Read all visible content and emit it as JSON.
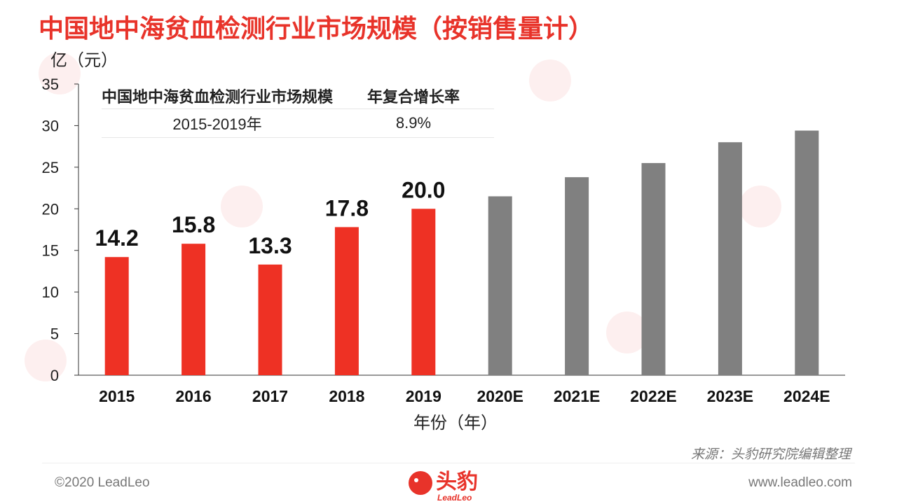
{
  "title": "中国地中海贫血检测行业市场规模（按销售量计）",
  "y_unit": "亿（元）",
  "x_title": "年份（年）",
  "cagr_table": {
    "header_left": "中国地中海贫血检测行业市场规模",
    "header_right": "年复合增长率",
    "period": "2015-2019年",
    "rate": "8.9%"
  },
  "chart_data": {
    "type": "bar",
    "categories": [
      "2015",
      "2016",
      "2017",
      "2018",
      "2019",
      "2020E",
      "2021E",
      "2022E",
      "2023E",
      "2024E"
    ],
    "values": [
      14.2,
      15.8,
      13.3,
      17.8,
      20.0,
      21.5,
      23.8,
      25.5,
      28.0,
      29.4
    ],
    "data_labels": [
      "14.2",
      "15.8",
      "13.3",
      "17.8",
      "20.0",
      null,
      null,
      null,
      null,
      null
    ],
    "ylim": [
      0,
      35
    ],
    "yticks": [
      0,
      5,
      10,
      15,
      20,
      25,
      30,
      35
    ],
    "colors": {
      "actual": "#ee3124",
      "forecast": "#808080"
    },
    "actual_count": 5
  },
  "footer": {
    "source": "来源：头豹研究院编辑整理",
    "copyright": "©2020 LeadLeo",
    "website": "www.leadleo.com",
    "logo_text": "头豹",
    "logo_subtext": "LeadLeo"
  },
  "icons": {
    "logo": "leopard-logo-icon",
    "watermark": "leopard-watermark-icon"
  }
}
